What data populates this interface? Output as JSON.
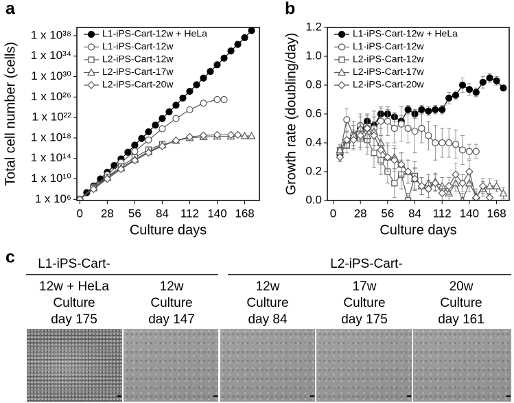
{
  "chart_data": [
    {
      "type": "line",
      "panel_label": "a",
      "xlabel": "Culture days",
      "ylabel": "Total cell number (cells)",
      "log": true,
      "xlim": [
        -3,
        183
      ],
      "xticks": [
        0,
        28,
        56,
        84,
        112,
        140,
        168
      ],
      "ylim": [
        600000.0,
        4e+39
      ],
      "yticks": [
        {
          "value": 1000000.0,
          "label": "1 x 10⁶"
        },
        {
          "value": 10000000000.0,
          "label": "1 x 10¹⁰"
        },
        {
          "value": 100000000000000.0,
          "label": "1 x 10¹⁴"
        },
        {
          "value": 1e+18,
          "label": "1 x 10¹⁸"
        },
        {
          "value": 1e+22,
          "label": "1 x 10²²"
        },
        {
          "value": 1e+26,
          "label": "1 x 10²⁶"
        },
        {
          "value": 1e+30,
          "label": "1 x 10³⁰"
        },
        {
          "value": 1e+34,
          "label": "1 x 10³⁴"
        },
        {
          "value": 1e+38,
          "label": "1 x 10³⁸"
        }
      ],
      "legend": "upper left",
      "series": [
        {
          "name": "L1-iPS-Cart-12w + HeLa",
          "color": "#000000",
          "marker": "filled-circle",
          "x": [
            0,
            7,
            14,
            21,
            28,
            35,
            42,
            49,
            56,
            63,
            70,
            77,
            84,
            91,
            98,
            105,
            112,
            119,
            126,
            133,
            140,
            147,
            154,
            161,
            168,
            175
          ],
          "values": [
            1000000.0,
            20000000.0,
            400000000.0,
            10000000000.0,
            200000000000.0,
            4000000000000.0,
            80000000000000.0,
            1600000000000000.0,
            4e+16,
            8e+17,
            1.6e+19,
            3.2e+20,
            6.3e+21,
            1.3e+23,
            2.5e+24,
            6.3e+25,
            1.3e+27,
            2.5e+28,
            5e+29,
            1e+31,
            2e+32,
            4e+33,
            1e+35,
            2e+36,
            4e+37,
            1e+39
          ]
        },
        {
          "name": "L1-iPS-Cart-12w",
          "color": "#555555",
          "marker": "circle",
          "x": [
            0,
            14,
            28,
            42,
            56,
            70,
            84,
            98,
            112,
            126,
            140,
            147
          ],
          "values": [
            1000000.0,
            250000000.0,
            63000000000.0,
            16000000000000.0,
            2500000000000000.0,
            4e+17,
            6.3e+19,
            6.3e+21,
            3.2e+23,
            6.3e+24,
            3.2e+25,
            3.2e+25
          ]
        },
        {
          "name": "L2-iPS-Cart-12w",
          "color": "#555555",
          "marker": "square",
          "x": [
            0,
            14,
            28,
            42,
            56,
            70,
            84
          ],
          "values": [
            1000000.0,
            160000000.0,
            25000000000.0,
            2500000000000.0,
            160000000000000.0,
            5000000000000000.0,
            6.3e+16
          ]
        },
        {
          "name": "L2-iPS-Cart-17w",
          "color": "#555555",
          "marker": "triangle",
          "x": [
            0,
            14,
            28,
            42,
            56,
            70,
            84,
            98,
            112,
            126,
            140,
            154,
            168,
            175
          ],
          "values": [
            1000000.0,
            160000000.0,
            16000000000.0,
            1300000000000.0,
            63000000000000.0,
            2000000000000000.0,
            4e+16,
            3.2e+17,
            1e+18,
            1.6e+18,
            2e+18,
            2e+18,
            2.5e+18,
            2.5e+18
          ]
        },
        {
          "name": "L2-iPS-Cart-20w",
          "color": "#555555",
          "marker": "diamond",
          "x": [
            0,
            14,
            28,
            42,
            56,
            70,
            84,
            98,
            112,
            126,
            140,
            154,
            161
          ],
          "values": [
            1000000.0,
            100000000.0,
            10000000000.0,
            800000000000.0,
            40000000000000.0,
            1300000000000000.0,
            2.5e+16,
            3.2e+17,
            1.6e+18,
            3.2e+18,
            4e+18,
            4e+18,
            4e+18
          ]
        }
      ]
    },
    {
      "type": "line",
      "panel_label": "b",
      "xlabel": "Culture days",
      "ylabel": "Growth rate (doubling/day)",
      "log": false,
      "xlim": [
        -6,
        181
      ],
      "xticks": [
        0,
        28,
        56,
        84,
        112,
        140,
        168
      ],
      "ylim": [
        0,
        1.2
      ],
      "yticks": [
        {
          "value": 0,
          "label": "0.0"
        },
        0.2,
        0.4,
        0.6,
        0.8,
        {
          "value": 1,
          "label": "1.0"
        },
        1.2
      ],
      "legend": "upper left",
      "series": [
        {
          "name": "L1-iPS-Cart-12w + HeLa",
          "color": "#000000",
          "marker": "filled-circle",
          "x": [
            7,
            14,
            21,
            28,
            35,
            42,
            49,
            56,
            63,
            70,
            77,
            84,
            91,
            98,
            105,
            112,
            119,
            126,
            133,
            140,
            147,
            154,
            161,
            168,
            175
          ],
          "values": [
            0.32,
            0.4,
            0.45,
            0.5,
            0.55,
            0.52,
            0.6,
            0.6,
            0.58,
            0.55,
            0.63,
            0.6,
            0.63,
            0.62,
            0.63,
            0.63,
            0.71,
            0.73,
            0.8,
            0.77,
            0.75,
            0.82,
            0.85,
            0.83,
            0.78
          ],
          "errors": [
            0.02,
            0.03,
            0.04,
            0.03,
            0.04,
            0.03,
            0.04,
            0.03,
            0.03,
            0.04,
            0.03,
            0.03,
            0.03,
            0.03,
            0.03,
            0.03,
            0.04,
            0.03,
            0.05,
            0.04,
            0.03,
            0.04,
            0.03,
            0.03,
            0.02
          ]
        },
        {
          "name": "L1-iPS-Cart-12w",
          "color": "#555555",
          "marker": "circle",
          "x": [
            7,
            14,
            21,
            28,
            35,
            42,
            49,
            56,
            63,
            70,
            77,
            84,
            91,
            98,
            105,
            112,
            119,
            126,
            133,
            140,
            147
          ],
          "values": [
            0.33,
            0.56,
            0.45,
            0.52,
            0.5,
            0.5,
            0.55,
            0.55,
            0.5,
            0.53,
            0.5,
            0.48,
            0.5,
            0.45,
            0.4,
            0.4,
            0.4,
            0.39,
            0.35,
            0.34,
            0.34
          ],
          "errors": [
            0.03,
            0.08,
            0.1,
            0.08,
            0.1,
            0.12,
            0.1,
            0.1,
            0.1,
            0.12,
            0.1,
            0.15,
            0.1,
            0.1,
            0.12,
            0.1,
            0.1,
            0.1,
            0.1,
            0.05,
            0.05
          ]
        },
        {
          "name": "L2-iPS-Cart-12w",
          "color": "#555555",
          "marker": "square",
          "x": [
            7,
            14,
            21,
            28,
            35,
            42,
            49,
            56,
            63,
            70,
            77,
            84
          ],
          "values": [
            0.35,
            0.38,
            0.45,
            0.43,
            0.42,
            0.33,
            0.28,
            0.2,
            0.12,
            0.18,
            0,
            0.17
          ],
          "errors": [
            0.03,
            0.05,
            0.07,
            0.08,
            0.1,
            0.1,
            0.1,
            0.08,
            0.1,
            0.1,
            0.05,
            0.1
          ]
        },
        {
          "name": "L2-iPS-Cart-17w",
          "color": "#555555",
          "marker": "triangle",
          "x": [
            7,
            14,
            21,
            28,
            35,
            42,
            49,
            56,
            63,
            70,
            77,
            84,
            91,
            98,
            105,
            112,
            119,
            126,
            133,
            140,
            147,
            154,
            161,
            168,
            175
          ],
          "values": [
            0.35,
            0.42,
            0.45,
            0.5,
            0.45,
            0.48,
            0.4,
            0.3,
            0.3,
            0.25,
            0.2,
            0.15,
            0.1,
            0.12,
            0.13,
            0.1,
            0.05,
            0.12,
            0,
            0.12,
            0.03,
            0.08,
            0.1,
            0.1,
            0.05
          ],
          "errors": [
            0.04,
            0.06,
            0.07,
            0.08,
            0.08,
            0.1,
            0.1,
            0.1,
            0.08,
            0.08,
            0.08,
            0.08,
            0.06,
            0.06,
            0.06,
            0.06,
            0.05,
            0.06,
            0.05,
            0.06,
            0.05,
            0.05,
            0.05,
            0.04,
            0.04
          ]
        },
        {
          "name": "L2-iPS-Cart-20w",
          "color": "#555555",
          "marker": "diamond",
          "x": [
            7,
            14,
            21,
            28,
            35,
            42,
            49,
            56,
            63,
            70,
            77,
            84,
            91,
            98,
            105,
            112,
            119,
            126,
            133,
            140,
            147,
            154,
            161
          ],
          "values": [
            0.3,
            0.42,
            0.42,
            0.45,
            0.5,
            0.45,
            0.35,
            0.3,
            0.28,
            0.25,
            0.2,
            0.15,
            0.1,
            0.08,
            0.12,
            0.05,
            0.1,
            0.18,
            0.12,
            0.2,
            0.02,
            0.1,
            0.02
          ],
          "errors": [
            0.03,
            0.05,
            0.06,
            0.08,
            0.1,
            0.1,
            0.1,
            0.08,
            0.08,
            0.08,
            0.08,
            0.07,
            0.06,
            0.06,
            0.06,
            0.05,
            0.06,
            0.08,
            0.06,
            0.08,
            0.04,
            0.05,
            0.03
          ]
        }
      ]
    }
  ],
  "panel_c": {
    "label": "c",
    "groups": [
      {
        "title": "L1-iPS-Cart-"
      },
      {
        "title": "L2-iPS-Cart-"
      }
    ],
    "columns": [
      {
        "lines": [
          "12w + HeLa",
          "Culture",
          "day 175"
        ]
      },
      {
        "lines": [
          "12w",
          "Culture",
          "day 147"
        ]
      },
      {
        "lines": [
          "12w",
          "Culture",
          "day 84"
        ]
      },
      {
        "lines": [
          "17w",
          "Culture",
          "day 175"
        ]
      },
      {
        "lines": [
          "20w",
          "Culture",
          "day 161"
        ]
      }
    ]
  }
}
